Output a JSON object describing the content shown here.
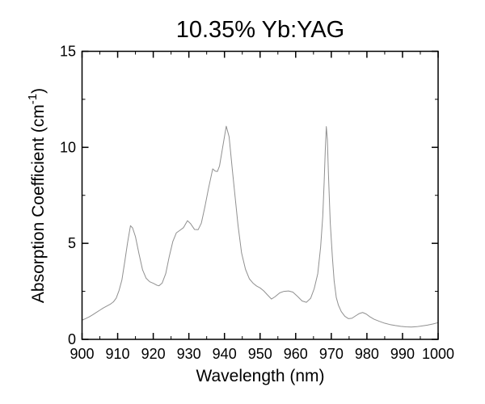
{
  "window": {
    "background": "#ffffff"
  },
  "chart_data": {
    "type": "line",
    "title": "10.35% Yb:YAG",
    "xlabel": "Wavelength (nm)",
    "ylabel": "Absorption Coefficient (cm⁻¹)",
    "ylabel_parts": {
      "base": "Absorption Coefficient (cm",
      "sup": "-1",
      "close": ")"
    },
    "xlim": [
      900,
      1000
    ],
    "ylim": [
      0,
      15
    ],
    "x_major_ticks": [
      900,
      910,
      920,
      930,
      940,
      950,
      960,
      970,
      980,
      990,
      1000
    ],
    "x_minor_ticks": [
      905,
      915,
      925,
      935,
      945,
      955,
      965,
      975,
      985,
      995
    ],
    "y_major_ticks": [
      0,
      5,
      10,
      15
    ],
    "y_minor_ticks": [
      2.5,
      7.5,
      12.5
    ],
    "grid": false,
    "legend": null,
    "frame_color": "#000000",
    "line_color": "#909090",
    "series": [
      {
        "name": "absorption-spectrum",
        "points": [
          [
            900,
            1.0
          ],
          [
            901,
            1.08
          ],
          [
            902,
            1.17
          ],
          [
            903,
            1.28
          ],
          [
            904,
            1.4
          ],
          [
            905,
            1.52
          ],
          [
            906,
            1.64
          ],
          [
            907,
            1.74
          ],
          [
            908,
            1.84
          ],
          [
            908.8,
            1.95
          ],
          [
            909.6,
            2.15
          ],
          [
            910.4,
            2.55
          ],
          [
            911.2,
            3.1
          ],
          [
            912,
            4.05
          ],
          [
            912.8,
            5.05
          ],
          [
            913.6,
            5.92
          ],
          [
            914.2,
            5.8
          ],
          [
            915,
            5.35
          ],
          [
            916,
            4.45
          ],
          [
            917,
            3.62
          ],
          [
            918,
            3.18
          ],
          [
            919,
            3.0
          ],
          [
            920,
            2.92
          ],
          [
            921,
            2.82
          ],
          [
            921.6,
            2.79
          ],
          [
            922.5,
            2.93
          ],
          [
            923.5,
            3.42
          ],
          [
            924.5,
            4.32
          ],
          [
            925.5,
            5.1
          ],
          [
            926.5,
            5.55
          ],
          [
            927.5,
            5.68
          ],
          [
            928.5,
            5.82
          ],
          [
            929.6,
            6.18
          ],
          [
            930.5,
            6.02
          ],
          [
            931.6,
            5.72
          ],
          [
            932.6,
            5.71
          ],
          [
            933.5,
            6.05
          ],
          [
            934.5,
            6.9
          ],
          [
            935.5,
            7.85
          ],
          [
            936.7,
            8.88
          ],
          [
            937.4,
            8.76
          ],
          [
            938,
            8.74
          ],
          [
            938.6,
            9.02
          ],
          [
            939.4,
            9.9
          ],
          [
            940.5,
            11.1
          ],
          [
            941.3,
            10.55
          ],
          [
            942.2,
            8.85
          ],
          [
            943,
            7.4
          ],
          [
            943.8,
            5.95
          ],
          [
            944.8,
            4.5
          ],
          [
            945.9,
            3.65
          ],
          [
            947,
            3.15
          ],
          [
            948,
            2.93
          ],
          [
            949,
            2.78
          ],
          [
            950,
            2.68
          ],
          [
            951,
            2.53
          ],
          [
            952,
            2.33
          ],
          [
            953.2,
            2.1
          ],
          [
            954.2,
            2.22
          ],
          [
            955.5,
            2.42
          ],
          [
            956.7,
            2.5
          ],
          [
            958,
            2.52
          ],
          [
            959.2,
            2.46
          ],
          [
            960.5,
            2.24
          ],
          [
            961.8,
            2.0
          ],
          [
            963,
            1.93
          ],
          [
            964.2,
            2.14
          ],
          [
            965.2,
            2.64
          ],
          [
            966.2,
            3.42
          ],
          [
            967,
            4.8
          ],
          [
            967.6,
            6.4
          ],
          [
            968,
            8.2
          ],
          [
            968.3,
            9.8
          ],
          [
            968.6,
            11.08
          ],
          [
            968.9,
            10.4
          ],
          [
            969.2,
            8.6
          ],
          [
            969.7,
            6.1
          ],
          [
            970.3,
            4.3
          ],
          [
            970.8,
            3.05
          ],
          [
            971.4,
            2.18
          ],
          [
            972,
            1.78
          ],
          [
            972.8,
            1.45
          ],
          [
            973.8,
            1.2
          ],
          [
            974.8,
            1.08
          ],
          [
            975.8,
            1.1
          ],
          [
            976.8,
            1.22
          ],
          [
            977.8,
            1.34
          ],
          [
            978.8,
            1.4
          ],
          [
            979.8,
            1.32
          ],
          [
            980.8,
            1.18
          ],
          [
            982,
            1.05
          ],
          [
            983.5,
            0.94
          ],
          [
            985,
            0.84
          ],
          [
            986.5,
            0.77
          ],
          [
            988,
            0.72
          ],
          [
            989.5,
            0.68
          ],
          [
            991,
            0.65
          ],
          [
            992.5,
            0.64
          ],
          [
            994,
            0.66
          ],
          [
            995.5,
            0.7
          ],
          [
            997,
            0.74
          ],
          [
            998.5,
            0.8
          ],
          [
            1000,
            0.87
          ]
        ]
      }
    ]
  }
}
